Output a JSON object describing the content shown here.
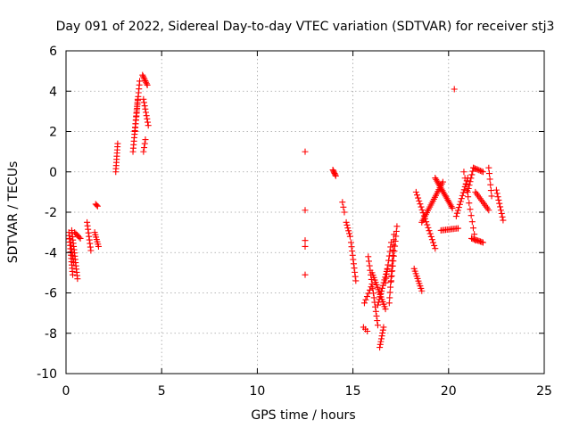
{
  "chart_data": {
    "type": "scatter",
    "title": "Day 091 of 2022, Sidereal Day-to-day VTEC variation (SDTVAR) for receiver stj3",
    "xlabel": "GPS time / hours",
    "ylabel": "SDTVAR / TECUs",
    "xlim": [
      0,
      25
    ],
    "ylim": [
      -10,
      6
    ],
    "xticks": [
      0,
      5,
      10,
      15,
      20,
      25
    ],
    "yticks": [
      -10,
      -8,
      -6,
      -4,
      -2,
      0,
      2,
      4,
      6
    ],
    "grid": true,
    "marker": "+",
    "color": "#ff0000",
    "segments": [
      {
        "x0": 0.15,
        "x1": 0.35,
        "y0": -3.0,
        "y1": -5.1,
        "n": 14
      },
      {
        "x0": 0.3,
        "x1": 0.6,
        "y0": -2.9,
        "y1": -5.3,
        "n": 16
      },
      {
        "x0": 0.2,
        "x1": 0.4,
        "y0": -3.3,
        "y1": -4.5,
        "n": 8
      },
      {
        "x0": 0.45,
        "x1": 0.75,
        "y0": -3.0,
        "y1": -3.3,
        "n": 6
      },
      {
        "x0": 1.1,
        "x1": 1.3,
        "y0": -2.5,
        "y1": -3.9,
        "n": 9
      },
      {
        "x0": 1.5,
        "x1": 1.7,
        "y0": -3.0,
        "y1": -3.7,
        "n": 7
      },
      {
        "x0": 1.55,
        "x1": 1.65,
        "y0": -1.6,
        "y1": -1.7,
        "n": 3
      },
      {
        "x0": 2.6,
        "x1": 2.7,
        "y0": 0.0,
        "y1": 1.4,
        "n": 10
      },
      {
        "x0": 3.5,
        "x1": 3.75,
        "y0": 1.0,
        "y1": 3.6,
        "n": 16
      },
      {
        "x0": 3.6,
        "x1": 3.85,
        "y0": 2.0,
        "y1": 4.5,
        "n": 14
      },
      {
        "x0": 4.0,
        "x1": 4.25,
        "y0": 4.8,
        "y1": 4.3,
        "n": 8
      },
      {
        "x0": 4.05,
        "x1": 4.3,
        "y0": 3.6,
        "y1": 2.3,
        "n": 9
      },
      {
        "x0": 4.05,
        "x1": 4.15,
        "y0": 1.0,
        "y1": 1.6,
        "n": 4
      },
      {
        "x0": 12.5,
        "x1": 12.5,
        "y0": 1.0,
        "y1": 1.0,
        "n": 1
      },
      {
        "x0": 12.5,
        "x1": 12.5,
        "y0": -1.9,
        "y1": -1.9,
        "n": 1
      },
      {
        "x0": 12.5,
        "x1": 12.5,
        "y0": -3.4,
        "y1": -3.7,
        "n": 2
      },
      {
        "x0": 12.5,
        "x1": 12.5,
        "y0": -5.1,
        "y1": -5.1,
        "n": 1
      },
      {
        "x0": 13.95,
        "x1": 14.1,
        "y0": 0.1,
        "y1": -0.2,
        "n": 6
      },
      {
        "x0": 14.45,
        "x1": 14.55,
        "y0": -1.5,
        "y1": -2.0,
        "n": 3
      },
      {
        "x0": 14.65,
        "x1": 14.85,
        "y0": -2.5,
        "y1": -3.2,
        "n": 6
      },
      {
        "x0": 14.9,
        "x1": 15.15,
        "y0": -3.5,
        "y1": -5.4,
        "n": 10
      },
      {
        "x0": 15.55,
        "x1": 15.75,
        "y0": -7.7,
        "y1": -7.9,
        "n": 3
      },
      {
        "x0": 15.6,
        "x1": 15.95,
        "y0": -6.5,
        "y1": -5.7,
        "n": 6
      },
      {
        "x0": 15.8,
        "x1": 16.3,
        "y0": -4.2,
        "y1": -7.6,
        "n": 16
      },
      {
        "x0": 16.0,
        "x1": 16.7,
        "y0": -5.0,
        "y1": -6.8,
        "n": 16
      },
      {
        "x0": 16.3,
        "x1": 16.8,
        "y0": -6.6,
        "y1": -4.8,
        "n": 14
      },
      {
        "x0": 16.4,
        "x1": 16.6,
        "y0": -8.7,
        "y1": -7.7,
        "n": 8
      },
      {
        "x0": 16.7,
        "x1": 17.0,
        "y0": -5.5,
        "y1": -3.5,
        "n": 10
      },
      {
        "x0": 16.9,
        "x1": 17.15,
        "y0": -6.5,
        "y1": -3.1,
        "n": 14
      },
      {
        "x0": 17.0,
        "x1": 17.3,
        "y0": -5.4,
        "y1": -2.7,
        "n": 12
      },
      {
        "x0": 18.2,
        "x1": 18.6,
        "y0": -4.8,
        "y1": -5.9,
        "n": 10
      },
      {
        "x0": 18.3,
        "x1": 19.3,
        "y0": -1.0,
        "y1": -3.8,
        "n": 20
      },
      {
        "x0": 18.6,
        "x1": 19.7,
        "y0": -2.5,
        "y1": -0.5,
        "n": 22
      },
      {
        "x0": 19.3,
        "x1": 20.2,
        "y0": -0.3,
        "y1": -1.8,
        "n": 20
      },
      {
        "x0": 19.6,
        "x1": 20.5,
        "y0": -2.9,
        "y1": -2.8,
        "n": 12
      },
      {
        "x0": 20.4,
        "x1": 21.0,
        "y0": -2.2,
        "y1": -0.3,
        "n": 14
      },
      {
        "x0": 20.8,
        "x1": 21.4,
        "y0": 0.0,
        "y1": -3.4,
        "n": 12
      },
      {
        "x0": 21.0,
        "x1": 21.3,
        "y0": -1.0,
        "y1": 0.2,
        "n": 8
      },
      {
        "x0": 21.2,
        "x1": 21.8,
        "y0": -3.3,
        "y1": -3.5,
        "n": 10
      },
      {
        "x0": 21.3,
        "x1": 21.8,
        "y0": 0.2,
        "y1": 0.0,
        "n": 8
      },
      {
        "x0": 21.4,
        "x1": 22.1,
        "y0": -1.0,
        "y1": -1.9,
        "n": 12
      },
      {
        "x0": 20.3,
        "x1": 20.3,
        "y0": 4.1,
        "y1": 4.1,
        "n": 1
      },
      {
        "x0": 22.1,
        "x1": 22.25,
        "y0": 0.2,
        "y1": -1.2,
        "n": 6
      },
      {
        "x0": 22.5,
        "x1": 22.85,
        "y0": -0.9,
        "y1": -2.4,
        "n": 10
      }
    ]
  }
}
